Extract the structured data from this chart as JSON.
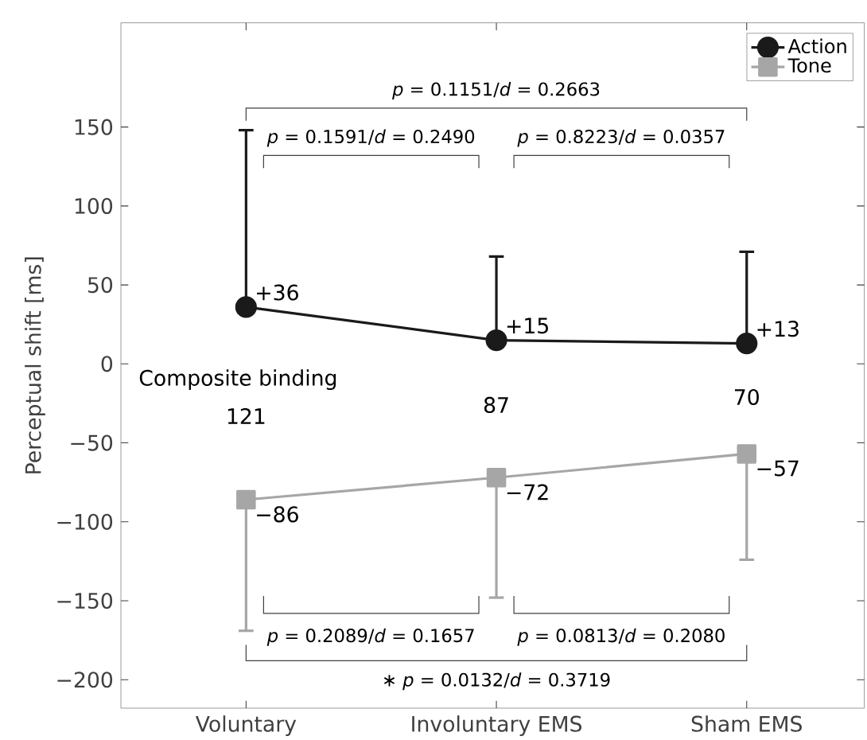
{
  "chart_data": {
    "type": "line",
    "ylabel": "Perceptual shift [ms]",
    "categories": [
      "Voluntary",
      "Involuntary EMS",
      "Sham EMS"
    ],
    "series": [
      {
        "name": "Action",
        "color": "#1a1a1a",
        "marker": "circle",
        "values": [
          36,
          15,
          13
        ],
        "errors": [
          [
            36,
            148
          ],
          [
            15,
            68
          ],
          [
            13,
            71
          ]
        ],
        "value_labels": [
          "+36",
          "+15",
          "+13"
        ]
      },
      {
        "name": "Tone",
        "color": "#a6a6a6",
        "marker": "square",
        "values": [
          -86,
          -72,
          -57
        ],
        "errors": [
          [
            -169,
            -86
          ],
          [
            -148,
            -72
          ],
          [
            -124,
            -57
          ]
        ],
        "value_labels": [
          "−86",
          "−72",
          "−57"
        ]
      }
    ],
    "ylim": [
      -218,
      216
    ],
    "yticks": [
      {
        "value": -200,
        "label": "−200"
      },
      {
        "value": -150,
        "label": "−150"
      },
      {
        "value": -100,
        "label": "−100"
      },
      {
        "value": -50,
        "label": "−50"
      },
      0,
      50,
      100,
      150
    ],
    "legend": "top right",
    "grid": false,
    "annotations": [
      "Composite binding",
      "121",
      "87",
      "70",
      "*p* = 0.1151/*d* = 0.2663",
      "*p* = 0.1591/*d* = 0.2490",
      "*p* = 0.8223/*d* = 0.0357",
      "*p* = 0.2089/*d* = 0.1657",
      "*p* = 0.0813/*d* = 0.2080",
      "∗ *p* = 0.0132/*d* = 0.3719"
    ]
  }
}
